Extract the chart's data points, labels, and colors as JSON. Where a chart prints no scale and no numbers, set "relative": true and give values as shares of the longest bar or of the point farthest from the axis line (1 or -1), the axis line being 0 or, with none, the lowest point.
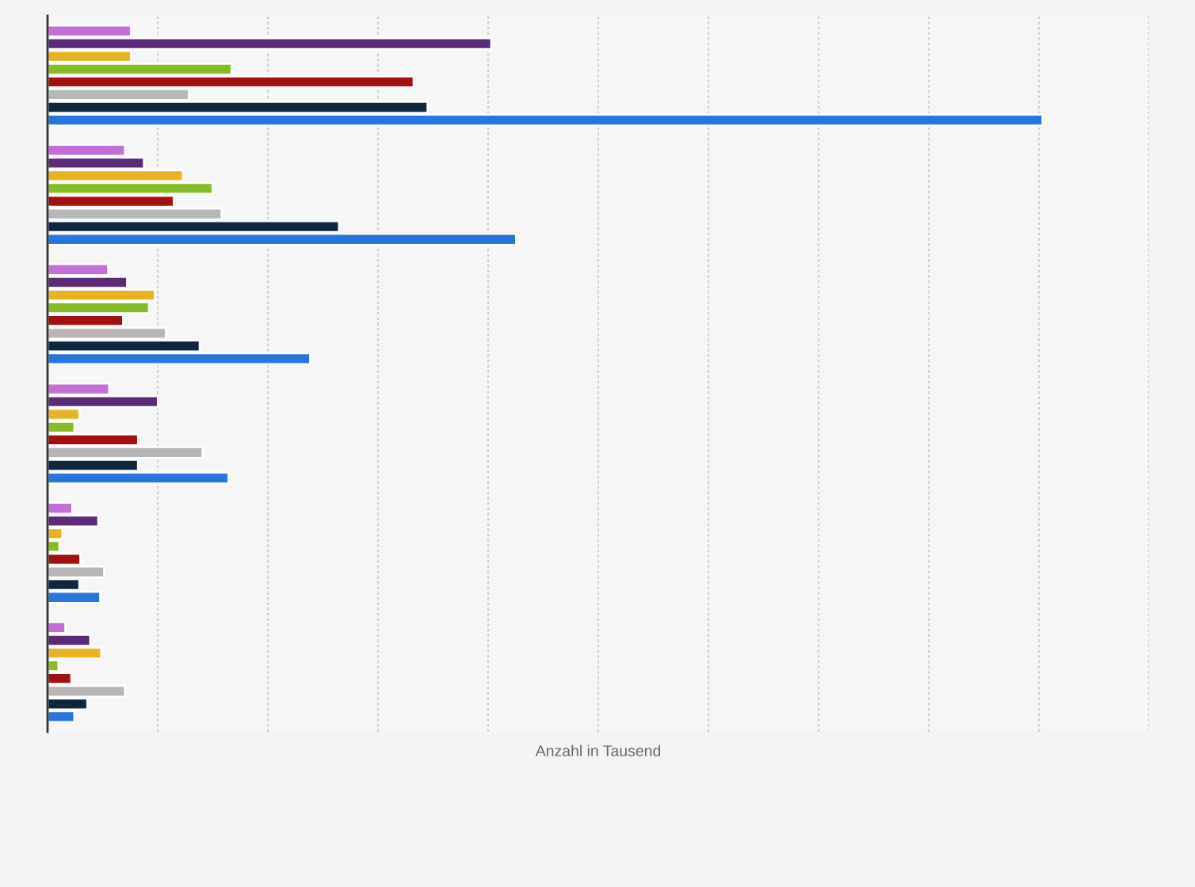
{
  "chart_data": {
    "type": "bar",
    "orientation": "horizontal",
    "relative": true,
    "tick_labels": false,
    "grid": "x",
    "categories": [
      null,
      null,
      null,
      null,
      null,
      null
    ],
    "xlabel": "Anzahl in Tausend",
    "series": [
      {
        "color": "#c36fd8",
        "values": [
          0.084,
          0.078,
          0.061,
          0.062,
          0.025,
          0.018
        ]
      },
      {
        "color": "#5b2a78",
        "values": [
          0.446,
          0.097,
          0.08,
          0.111,
          0.051,
          0.043
        ]
      },
      {
        "color": "#e8b323",
        "values": [
          0.084,
          0.136,
          0.108,
          0.032,
          0.015,
          0.054
        ]
      },
      {
        "color": "#86bc25",
        "values": [
          0.185,
          0.166,
          0.102,
          0.027,
          0.012,
          0.011
        ]
      },
      {
        "color": "#a50f0f",
        "values": [
          0.368,
          0.127,
          0.076,
          0.091,
          0.033,
          0.024
        ]
      },
      {
        "color": "#b6b6b6",
        "values": [
          0.142,
          0.175,
          0.119,
          0.156,
          0.057,
          0.078
        ]
      },
      {
        "color": "#0f263f",
        "values": [
          0.382,
          0.293,
          0.153,
          0.091,
          0.032,
          0.04
        ]
      },
      {
        "color": "#2876dd",
        "values": [
          1,
          0.471,
          0.264,
          0.182,
          0.053,
          0.027
        ]
      }
    ]
  }
}
